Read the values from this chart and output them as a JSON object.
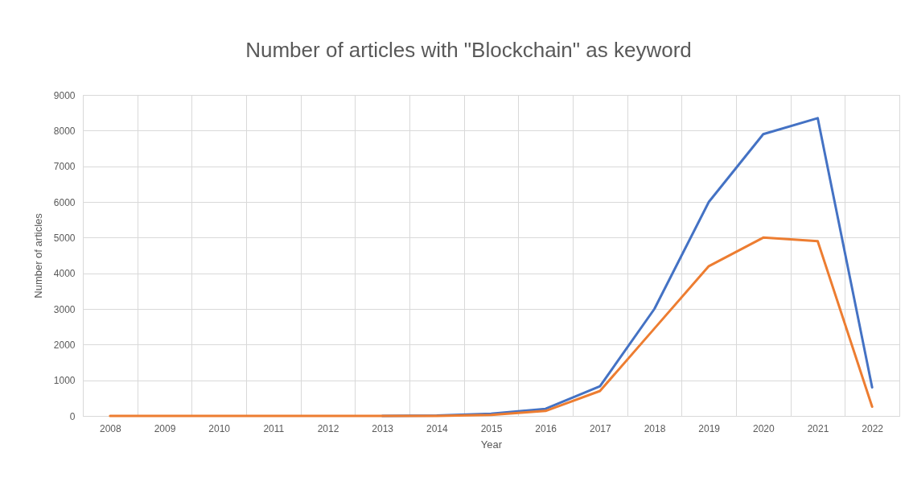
{
  "chart_data": {
    "type": "line",
    "title": "Number of articles with \"Blockchain\" as keyword",
    "xlabel": "Year",
    "ylabel": "Number of articles",
    "categories": [
      "2008",
      "2009",
      "2010",
      "2011",
      "2012",
      "2013",
      "2014",
      "2015",
      "2016",
      "2017",
      "2018",
      "2019",
      "2020",
      "2021",
      "2022"
    ],
    "series": [
      {
        "color": "#4472c4",
        "values": [
          null,
          null,
          null,
          null,
          null,
          0,
          10,
          60,
          200,
          830,
          3000,
          6000,
          7900,
          8350,
          800
        ]
      },
      {
        "color": "#ed7d31",
        "values": [
          0,
          0,
          0,
          0,
          0,
          0,
          0,
          30,
          140,
          700,
          2450,
          4200,
          5000,
          4900,
          260
        ]
      }
    ],
    "ylim": [
      0,
      9000
    ],
    "yticks": [
      0,
      1000,
      2000,
      3000,
      4000,
      5000,
      6000,
      7000,
      8000,
      9000
    ],
    "grid": true,
    "marker": "none",
    "line_style": "solid"
  }
}
